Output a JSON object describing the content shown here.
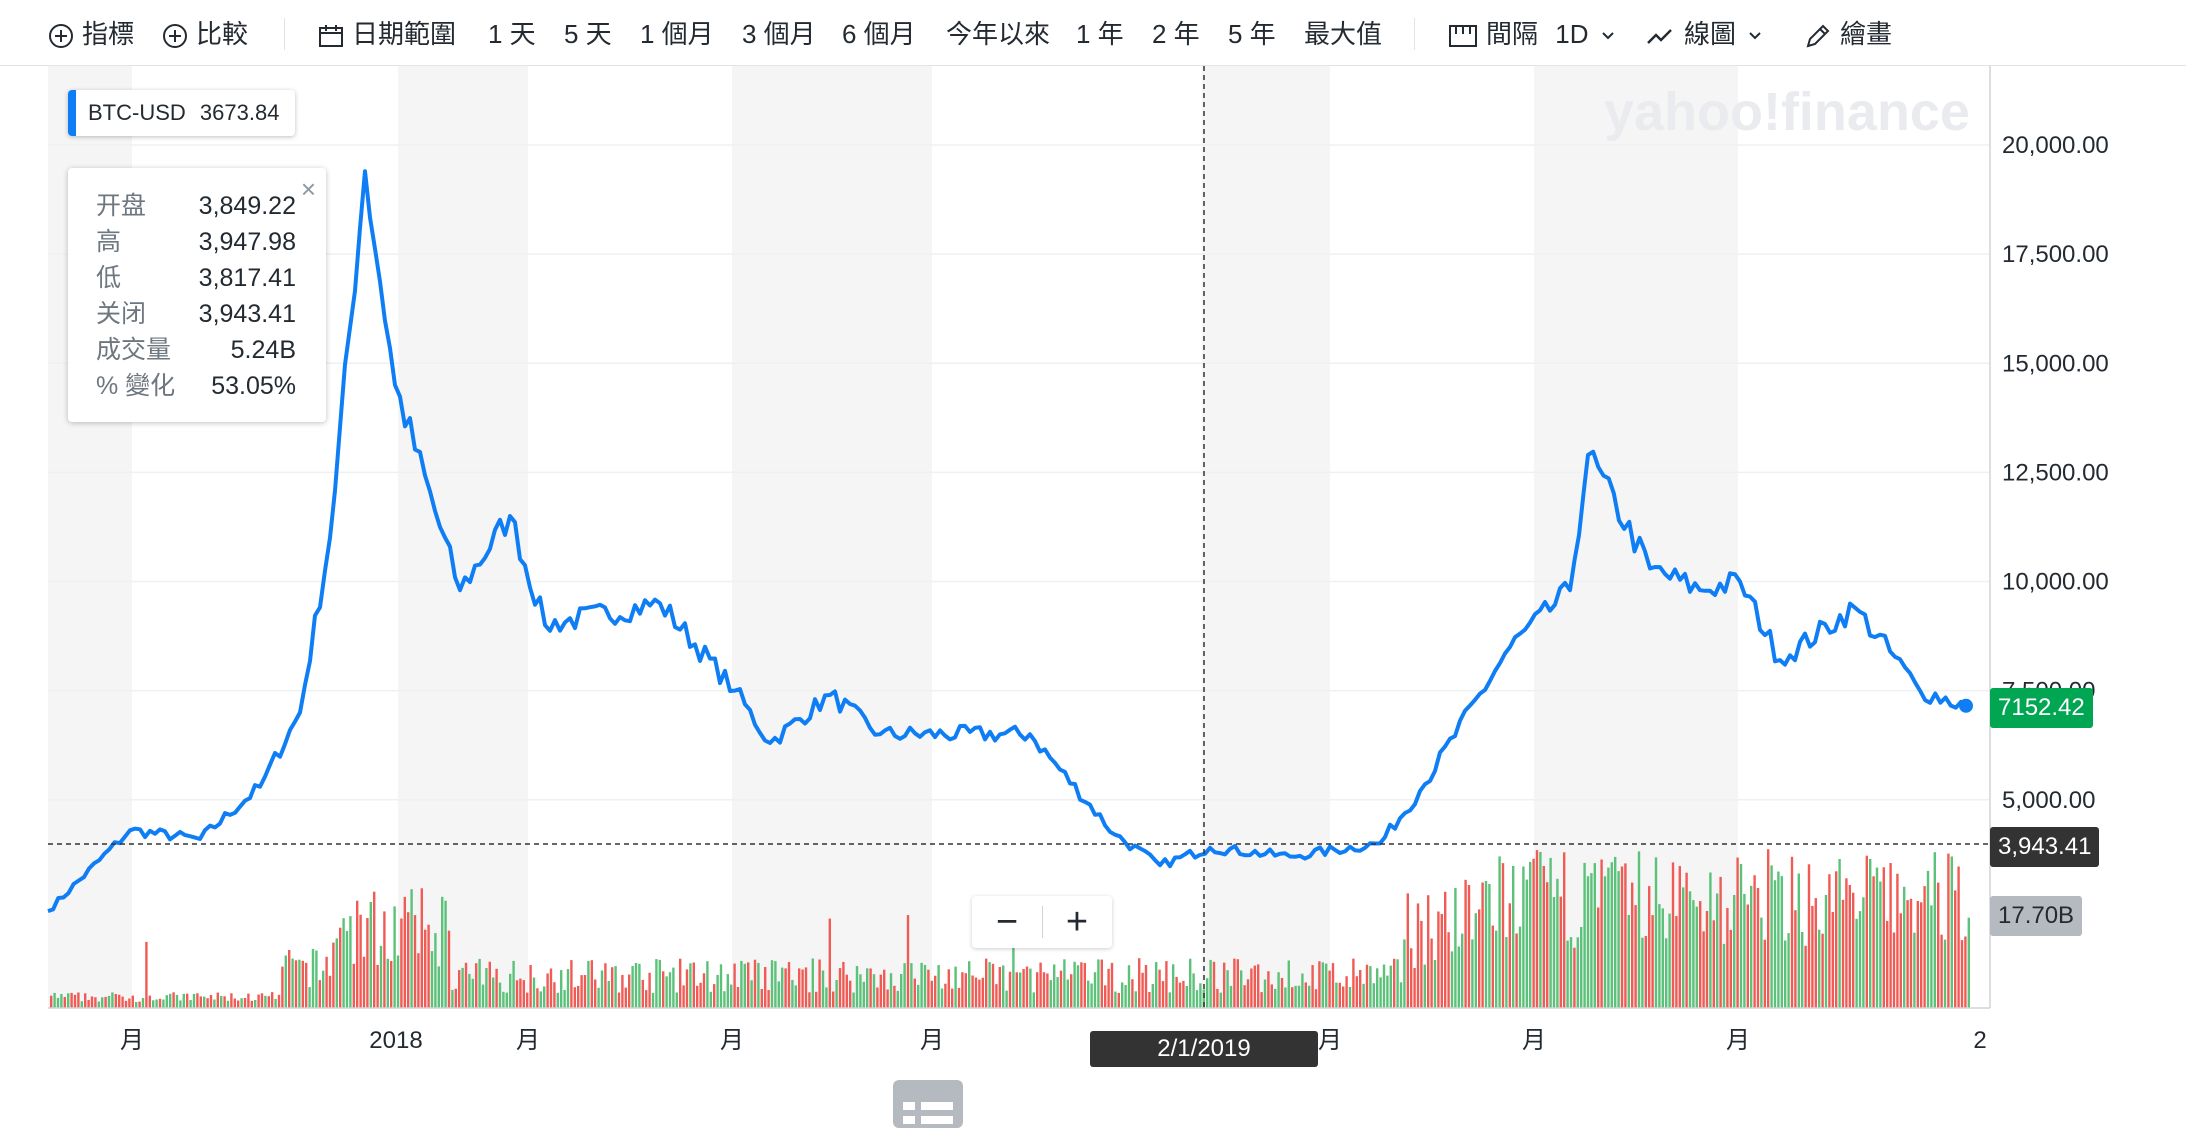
{
  "toolbar": {
    "indicators_label": "指標",
    "compare_label": "比較",
    "date_range_label": "日期範圍",
    "ranges": [
      "1 天",
      "5 天",
      "1 個月",
      "3 個月",
      "6 個月",
      "今年以來",
      "1 年",
      "2 年",
      "5 年",
      "最大值"
    ],
    "interval_label": "間隔",
    "interval_value": "1D",
    "chart_type_label": "線圖",
    "draw_label": "繪畫"
  },
  "watermark": "yahoo!finance",
  "symbol": {
    "name": "BTC-USD",
    "value": "3673.84"
  },
  "tooltip": {
    "rows": [
      {
        "key": "开盘",
        "value": "3,849.22"
      },
      {
        "key": "高",
        "value": "3,947.98"
      },
      {
        "key": "低",
        "value": "3,817.41"
      },
      {
        "key": "关闭",
        "value": "3,943.41"
      },
      {
        "key": "成交量",
        "value": "5.24B"
      },
      {
        "key": "% 變化",
        "value": "53.05%"
      }
    ],
    "close_glyph": "×"
  },
  "labels": {
    "last_price": "7152.42",
    "crosshair_price": "3,943.41",
    "volume": "17.70B",
    "crosshair_date": "2/1/2019"
  },
  "zoom": {
    "minus": "−",
    "plus": "+"
  },
  "colors": {
    "line": "#0f7ef5",
    "up": "#5cc27a",
    "down": "#f05b55",
    "last_price_bg": "#00a651",
    "crosshair_bg": "#333333",
    "volume_bg": "#b4bac0",
    "shade": "#f5f5f5"
  },
  "chart_data": {
    "type": "line",
    "ylim": [
      0,
      21700
    ],
    "y_ticks": [
      "5,000.00",
      "7,500.00",
      "10,000.00",
      "12,500.00",
      "15,000.00",
      "17,500.00",
      "20,000.00"
    ],
    "y_tick_values": [
      5000,
      7500,
      10000,
      12500,
      15000,
      17500,
      20000
    ],
    "x_ticks": [
      "月",
      "2018",
      "月",
      "月",
      "月",
      "2019",
      "月",
      "月",
      "月",
      "2"
    ],
    "x": [
      "2017-07",
      "2017-08",
      "2017-09",
      "2017-10",
      "2017-11",
      "2017-12",
      "2017-12-17",
      "2018-01",
      "2018-02",
      "2018-03",
      "2018-04",
      "2018-05",
      "2018-06",
      "2018-07",
      "2018-08",
      "2018-09",
      "2018-10",
      "2018-11",
      "2018-12",
      "2019-01",
      "2019-02",
      "2019-03",
      "2019-04",
      "2019-05",
      "2019-06",
      "2019-06-26",
      "2019-07",
      "2019-08",
      "2019-09",
      "2019-10",
      "2019-10-26",
      "2019-11",
      "2019-12"
    ],
    "series": [
      {
        "name": "BTC-USD",
        "values": [
          2450,
          4300,
          4100,
          5300,
          7000,
          11000,
          19400,
          14500,
          9800,
          11500,
          9000,
          9500,
          7500,
          6300,
          7400,
          6500,
          6500,
          4200,
          3500,
          3900,
          3700,
          4000,
          5200,
          8500,
          9800,
          12900,
          10300,
          9800,
          10000,
          8200,
          9400,
          7500,
          7152
        ]
      }
    ],
    "volume": {
      "unit": "B",
      "last": 17.7
    }
  }
}
